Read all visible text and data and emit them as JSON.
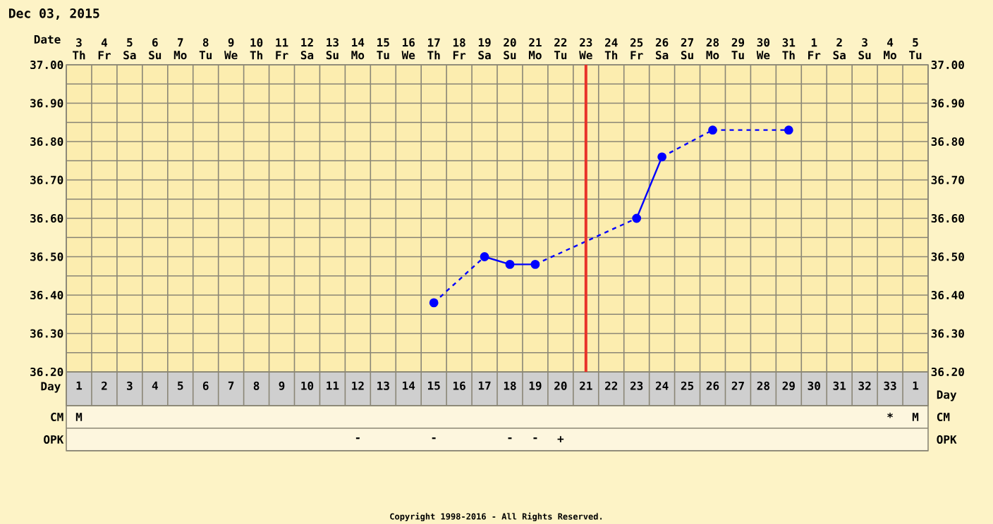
{
  "chart_data": [
    {
      "type": "line",
      "title": "Dec 03, 2015",
      "xlabel": "Day",
      "x2label": "Date",
      "categories": [
        "1",
        "2",
        "3",
        "4",
        "5",
        "6",
        "7",
        "8",
        "9",
        "10",
        "11",
        "12",
        "13",
        "14",
        "15",
        "16",
        "17",
        "18",
        "19",
        "20",
        "21",
        "22",
        "23",
        "24",
        "25",
        "26",
        "27",
        "28",
        "29",
        "30",
        "31",
        "32",
        "33",
        "1"
      ],
      "x2lim": [
        "2015-12-02T12:00",
        "2016-01-05T12:00"
      ],
      "x2ticks": [
        {
          "value": "2015-12-03",
          "label": "3 Th"
        },
        {
          "value": "2015-12-04",
          "label": "4 Fr"
        },
        {
          "value": "2015-12-05",
          "label": "5 Sa"
        },
        {
          "value": "2015-12-06",
          "label": "6 Su"
        },
        {
          "value": "2015-12-07",
          "label": "7 Mo"
        },
        {
          "value": "2015-12-08",
          "label": "8 Tu"
        },
        {
          "value": "2015-12-09",
          "label": "9 We"
        },
        {
          "value": "2015-12-10",
          "label": "10 Th"
        },
        {
          "value": "2015-12-11",
          "label": "11 Fr"
        },
        {
          "value": "2015-12-12",
          "label": "12 Sa"
        },
        {
          "value": "2015-12-13",
          "label": "13 Su"
        },
        {
          "value": "2015-12-14",
          "label": "14 Mo"
        },
        {
          "value": "2015-12-15",
          "label": "15 Tu"
        },
        {
          "value": "2015-12-16",
          "label": "16 We"
        },
        {
          "value": "2015-12-17",
          "label": "17 Th"
        },
        {
          "value": "2015-12-18",
          "label": "18 Fr"
        },
        {
          "value": "2015-12-19",
          "label": "19 Sa"
        },
        {
          "value": "2015-12-20",
          "label": "20 Su"
        },
        {
          "value": "2015-12-21",
          "label": "21 Mo"
        },
        {
          "value": "2015-12-22",
          "label": "22 Tu"
        },
        {
          "value": "2015-12-23",
          "label": "23 We"
        },
        {
          "value": "2015-12-24",
          "label": "24 Th"
        },
        {
          "value": "2015-12-25",
          "label": "25 Fr"
        },
        {
          "value": "2015-12-26",
          "label": "26 Sa"
        },
        {
          "value": "2015-12-27",
          "label": "27 Su"
        },
        {
          "value": "2015-12-28",
          "label": "28 Mo"
        },
        {
          "value": "2015-12-29",
          "label": "29 Tu"
        },
        {
          "value": "2015-12-30",
          "label": "30 We"
        },
        {
          "value": "2015-12-31",
          "label": "31 Th"
        },
        {
          "value": "2016-01-01",
          "label": "1 Fr"
        },
        {
          "value": "2016-01-02",
          "label": "2 Sa"
        },
        {
          "value": "2016-01-03",
          "label": "3 Su"
        },
        {
          "value": "2016-01-04",
          "label": "4 Mo"
        },
        {
          "value": "2016-01-05",
          "label": "5 Tu"
        }
      ],
      "ylim": [
        36.2,
        37.0
      ],
      "yticks": [
        {
          "value": 36.2,
          "label": "36.20"
        },
        {
          "value": 36.3,
          "label": "36.30"
        },
        {
          "value": 36.4,
          "label": "36.40"
        },
        {
          "value": 36.5,
          "label": "36.50"
        },
        {
          "value": 36.6,
          "label": "36.60"
        },
        {
          "value": 36.7,
          "label": "36.70"
        },
        {
          "value": 36.8,
          "label": "36.80"
        },
        {
          "value": 36.9,
          "label": "36.90"
        },
        {
          "value": 37.0,
          "label": "37.00"
        }
      ],
      "y2lim": [
        36.2,
        37.0
      ],
      "y2ticks": [
        {
          "value": 36.2,
          "label": "36.20"
        },
        {
          "value": 36.3,
          "label": "36.30"
        },
        {
          "value": 36.4,
          "label": "36.40"
        },
        {
          "value": 36.5,
          "label": "36.50"
        },
        {
          "value": 36.6,
          "label": "36.60"
        },
        {
          "value": 36.7,
          "label": "36.70"
        },
        {
          "value": 36.8,
          "label": "36.80"
        },
        {
          "value": 36.9,
          "label": "36.90"
        },
        {
          "value": 37.0,
          "label": "37.00"
        }
      ],
      "series": [
        {
          "color": "#0000ff",
          "values": [
            null,
            null,
            null,
            null,
            null,
            null,
            null,
            null,
            null,
            null,
            null,
            null,
            null,
            null,
            36.38,
            null,
            36.5,
            36.48,
            36.48,
            null,
            null,
            null,
            36.6,
            36.76,
            null,
            36.83,
            null,
            null,
            36.83,
            null,
            null,
            null,
            null,
            null
          ]
        }
      ],
      "marker": "circle",
      "grid": true,
      "ref_lines": [
        {
          "axis": "x",
          "value": "21",
          "color": "#e8322a"
        }
      ],
      "annotations": [
        "Copyright 1998-2016 - All Rights Reserved."
      ]
    },
    {
      "type": "heatmap",
      "tick_labels": "y",
      "categories": [
        "1",
        "2",
        "3",
        "4",
        "5",
        "6",
        "7",
        "8",
        "9",
        "10",
        "11",
        "12",
        "13",
        "14",
        "15",
        "16",
        "17",
        "18",
        "19",
        "20",
        "21",
        "22",
        "23",
        "24",
        "25",
        "26",
        "27",
        "28",
        "29",
        "30",
        "31",
        "32",
        "33",
        "1"
      ],
      "y_categories": [
        "CM",
        "OPK"
      ],
      "cells": [
        [
          null,
          null,
          null,
          null,
          null,
          null,
          null,
          null,
          null,
          null,
          null,
          null,
          null,
          null,
          null,
          null,
          null,
          null,
          null,
          null,
          null,
          null,
          null,
          null,
          null,
          null,
          null,
          null,
          null,
          null,
          null,
          null,
          null,
          null
        ],
        [
          null,
          null,
          null,
          null,
          null,
          null,
          null,
          null,
          null,
          null,
          null,
          null,
          null,
          null,
          null,
          null,
          null,
          null,
          null,
          null,
          null,
          null,
          null,
          null,
          null,
          null,
          null,
          null,
          null,
          null,
          null,
          null,
          null,
          null
        ]
      ],
      "cell_labels": [
        [
          "M",
          null,
          null,
          null,
          null,
          null,
          null,
          null,
          null,
          null,
          null,
          null,
          null,
          null,
          null,
          null,
          null,
          null,
          null,
          null,
          null,
          null,
          null,
          null,
          null,
          null,
          null,
          null,
          null,
          null,
          null,
          null,
          "*",
          "M"
        ],
        [
          null,
          null,
          null,
          null,
          null,
          null,
          null,
          null,
          null,
          null,
          null,
          "-",
          null,
          null,
          "-",
          null,
          null,
          "-",
          "-",
          "+",
          null,
          null,
          null,
          null,
          null,
          null,
          null,
          null,
          null,
          null,
          null,
          null,
          null,
          null
        ]
      ]
    }
  ]
}
